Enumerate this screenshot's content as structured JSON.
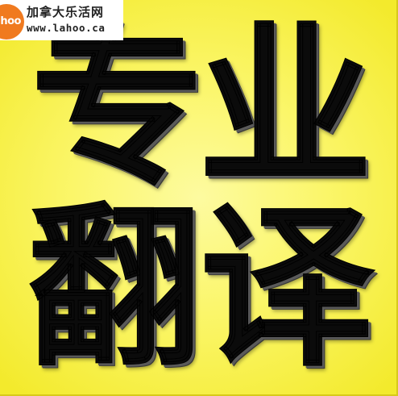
{
  "watermark": {
    "logo_text": "lahoo",
    "site_name": "加拿大乐活网",
    "url": "www.lahoo.ca"
  },
  "headline": {
    "chars": [
      "专",
      "业",
      "翻",
      "译"
    ]
  },
  "colors": {
    "background": "#fbf66a",
    "text": "#0b0b0b",
    "logo": "#f07a1f"
  }
}
